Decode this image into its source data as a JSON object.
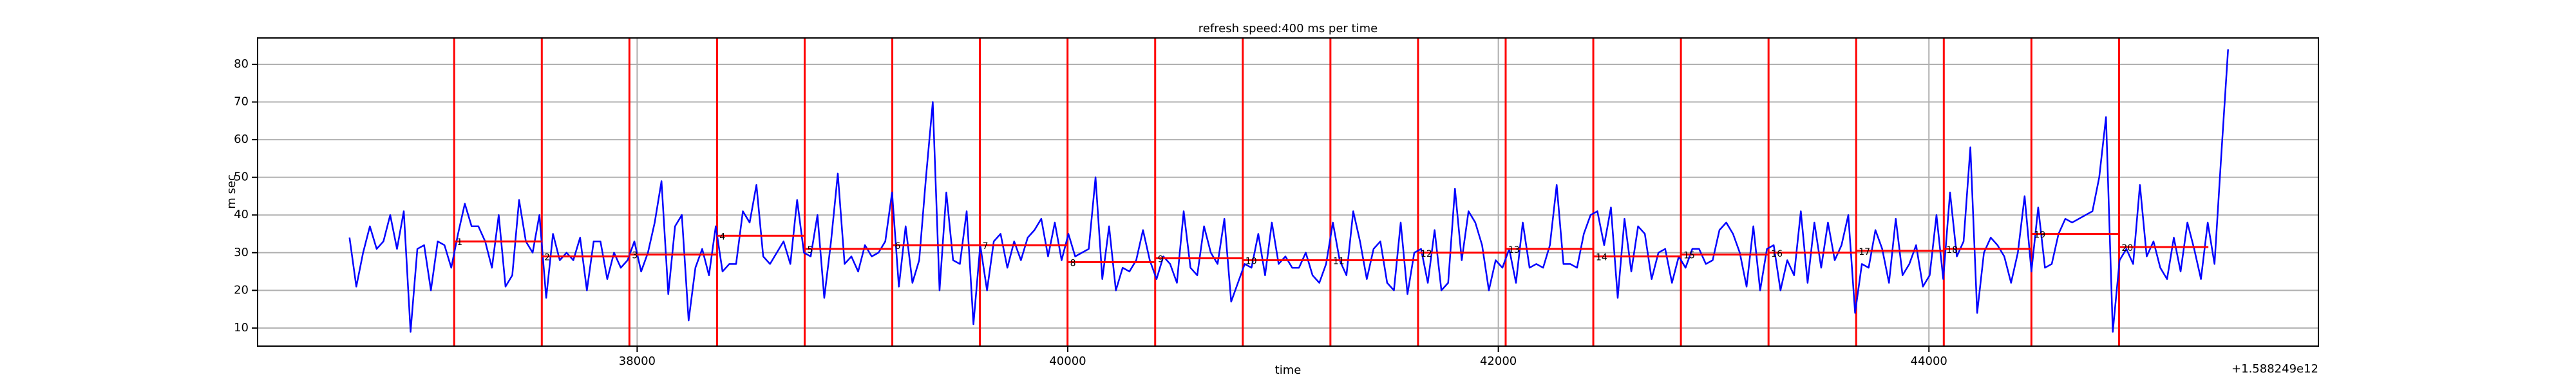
{
  "chart_data": {
    "type": "line",
    "title": "refresh speed:400 ms per time",
    "xlabel": "time",
    "ylabel": "m sec",
    "x_offset_label": "+1.588249e12",
    "xlim": [
      36237,
      45809
    ],
    "ylim": [
      5.2,
      87
    ],
    "xticks": [
      38000,
      40000,
      42000,
      44000
    ],
    "yticks": [
      10,
      20,
      30,
      40,
      50,
      60,
      70,
      80
    ],
    "grid": true,
    "series": [
      {
        "color": "#0000ff",
        "x": [
          36664,
          36695.5,
          36727,
          36758.5,
          36790,
          36821.5,
          36853,
          36884.5,
          36916,
          36947.5,
          36979,
          37010.5,
          37042,
          37073.5,
          37105,
          37136.5,
          37168,
          37199.5,
          37231,
          37262.5,
          37294,
          37325.5,
          37357,
          37388.5,
          37420,
          37451.5,
          37483,
          37514.5,
          37546,
          37577.5,
          37609,
          37640.5,
          37672,
          37703.5,
          37735,
          37766.5,
          37798,
          37829.5,
          37861,
          37892.5,
          37924,
          37955.5,
          37987,
          38018.5,
          38050,
          38081.5,
          38113,
          38144.5,
          38176,
          38207.5,
          38239,
          38270.5,
          38302,
          38333.5,
          38365,
          38396.5,
          38428,
          38459.5,
          38491,
          38522.5,
          38554,
          38585.5,
          38617,
          38648.5,
          38680,
          38711.5,
          38743,
          38774.5,
          38806,
          38837.5,
          38869,
          38900.5,
          38932,
          38963.5,
          38995,
          39026.5,
          39058,
          39089.5,
          39121,
          39152.5,
          39184,
          39215.5,
          39247,
          39278.5,
          39310,
          39341.5,
          39373,
          39404.5,
          39436,
          39467.5,
          39499,
          39530.5,
          39562,
          39593.5,
          39625,
          39656.5,
          39688,
          39719.5,
          39751,
          39782.5,
          39814,
          39845.5,
          39877,
          39908.5,
          39940,
          39971.5,
          40003,
          40034.5,
          40066,
          40097.5,
          40129,
          40160.5,
          40192,
          40223.5,
          40255,
          40286.5,
          40318,
          40349.5,
          40381,
          40412.5,
          40444,
          40475.5,
          40507,
          40538.5,
          40570,
          40601.5,
          40633,
          40664.5,
          40696,
          40727.5,
          40759,
          40790.5,
          40822,
          40853.5,
          40885,
          40916.5,
          40948,
          40979.5,
          41011,
          41042.5,
          41074,
          41105.5,
          41137,
          41168.5,
          41200,
          41231.5,
          41263,
          41294.5,
          41326,
          41357.5,
          41389,
          41420.5,
          41452,
          41483.5,
          41515,
          41546.5,
          41578,
          41609.5,
          41641,
          41672.5,
          41704,
          41735.5,
          41767,
          41798.5,
          41830,
          41861.5,
          41893,
          41924.5,
          41956,
          41987.5,
          42019,
          42050.5,
          42082,
          42113.5,
          42145,
          42176.5,
          42208,
          42239.5,
          42271,
          42302.5,
          42334,
          42365.5,
          42397,
          42428.5,
          42460,
          42491.5,
          42523,
          42554.5,
          42586,
          42617.5,
          42649,
          42680.5,
          42712,
          42743.5,
          42775,
          42806.5,
          42838,
          42869.5,
          42901,
          42932.5,
          42964,
          42995.5,
          43027,
          43058.5,
          43090,
          43121.5,
          43153,
          43184.5,
          43216,
          43247.5,
          43279,
          43310.5,
          43342,
          43373.5,
          43405,
          43436.5,
          43468,
          43499.5,
          43531,
          43562.5,
          43594,
          43625.5,
          43657,
          43688.5,
          43720,
          43751.5,
          43783,
          43814.5,
          43846,
          43877.5,
          43909,
          43940.5,
          43972,
          44003.5,
          44035,
          44066.5,
          44098,
          44129.5,
          44161,
          44192.5,
          44224,
          44255.5,
          44287,
          44318.5,
          44350,
          44381.5,
          44413,
          44444.5,
          44476,
          44507.5,
          44539,
          44570.5,
          44602,
          44633.5,
          44665,
          44696.5,
          44728,
          44759.5,
          44791,
          44822.5,
          44854,
          44885.5,
          44917,
          44948.5,
          44980,
          45011.5,
          45043,
          45074.5,
          45106,
          45137.5,
          45169,
          45200.5,
          45232,
          45263.5,
          45295,
          45326.5,
          45358,
          45389.5
        ],
        "values": [
          34,
          21,
          30,
          37,
          31,
          33,
          40,
          31,
          41,
          9,
          31,
          32,
          20,
          33,
          32,
          26,
          35,
          43,
          37,
          37,
          33,
          26,
          40,
          21,
          24,
          44,
          33,
          30,
          40,
          18,
          35,
          28,
          30,
          28,
          34,
          20,
          33,
          33,
          23,
          30,
          26,
          28,
          33,
          25,
          30,
          38,
          49,
          19,
          37,
          40,
          12,
          26,
          31,
          24,
          37,
          25,
          27,
          27,
          41,
          38,
          48,
          29,
          27,
          30,
          33,
          27,
          44,
          30,
          29,
          40,
          18,
          33,
          51,
          27,
          29,
          25,
          32,
          29,
          30,
          33,
          46,
          21,
          37,
          22,
          28,
          50,
          70,
          20,
          46,
          28,
          27,
          41,
          11,
          32,
          20,
          33,
          35,
          26,
          33,
          28,
          34,
          36,
          39,
          29,
          38,
          28,
          35,
          29,
          30,
          31,
          50,
          23,
          37,
          20,
          26,
          25,
          28,
          36,
          28,
          23,
          29,
          27,
          22,
          41,
          26,
          24,
          37,
          30,
          27,
          39,
          17,
          22,
          27,
          26,
          35,
          24,
          38,
          27,
          29,
          26,
          26,
          30,
          24,
          22,
          27,
          38,
          28,
          24,
          41,
          33,
          23,
          31,
          33,
          22,
          20,
          38,
          19,
          30,
          31,
          22,
          36,
          20,
          22,
          47,
          28,
          41,
          38,
          32,
          20,
          28,
          26,
          31,
          22,
          38,
          26,
          27,
          26,
          32,
          48,
          27,
          27,
          26,
          35,
          40,
          41,
          32,
          42,
          18,
          39,
          25,
          37,
          35,
          23,
          30,
          31,
          22,
          29,
          26,
          31,
          31,
          27,
          28,
          36,
          38,
          35,
          30,
          21,
          37,
          20,
          31,
          32,
          20,
          28,
          24,
          41,
          22,
          38,
          26,
          38,
          28,
          32,
          40,
          14,
          27,
          26,
          36,
          31,
          22,
          39,
          24,
          27,
          32,
          21,
          24,
          40,
          23,
          46,
          29,
          33,
          58,
          14,
          30,
          34,
          32,
          29,
          22,
          30,
          45,
          25,
          42,
          26,
          27,
          35,
          39,
          38,
          39,
          40,
          41,
          50,
          66,
          9,
          28,
          31,
          27,
          48,
          29,
          33,
          26,
          23,
          34,
          25,
          38,
          31,
          23,
          38,
          27,
          56,
          84
        ]
      }
    ],
    "vline_color": "#ff0000",
    "vlines": [
      37150,
      37557,
      37964,
      38371,
      38778,
      39185,
      39592,
      39999,
      40406,
      40813,
      41220,
      41627,
      42034,
      42441,
      42848,
      43255,
      43662,
      44069,
      44476,
      44883
    ],
    "segments": [
      {
        "x0": 37150,
        "x1": 37557,
        "value": 33,
        "label": "1"
      },
      {
        "x0": 37557,
        "x1": 37964,
        "value": 29,
        "label": "2"
      },
      {
        "x0": 37964,
        "x1": 38371,
        "value": 29.5,
        "label": "3"
      },
      {
        "x0": 38371,
        "x1": 38778,
        "value": 34.5,
        "label": "4"
      },
      {
        "x0": 38778,
        "x1": 39185,
        "value": 31,
        "label": "5"
      },
      {
        "x0": 39185,
        "x1": 39592,
        "value": 32,
        "label": "6"
      },
      {
        "x0": 39592,
        "x1": 39999,
        "value": 32,
        "label": "7"
      },
      {
        "x0": 39999,
        "x1": 40406,
        "value": 27.5,
        "label": "8"
      },
      {
        "x0": 40406,
        "x1": 40813,
        "value": 28.5,
        "label": "9"
      },
      {
        "x0": 40813,
        "x1": 41220,
        "value": 28,
        "label": "10"
      },
      {
        "x0": 41220,
        "x1": 41627,
        "value": 28,
        "label": "11"
      },
      {
        "x0": 41627,
        "x1": 42034,
        "value": 30,
        "label": "12"
      },
      {
        "x0": 42034,
        "x1": 42441,
        "value": 31,
        "label": "13"
      },
      {
        "x0": 42441,
        "x1": 42848,
        "value": 29,
        "label": "14"
      },
      {
        "x0": 42848,
        "x1": 43255,
        "value": 29.5,
        "label": "15"
      },
      {
        "x0": 43255,
        "x1": 43662,
        "value": 30,
        "label": "16"
      },
      {
        "x0": 43662,
        "x1": 44069,
        "value": 30.5,
        "label": "17"
      },
      {
        "x0": 44069,
        "x1": 44476,
        "value": 31,
        "label": "18"
      },
      {
        "x0": 44476,
        "x1": 44883,
        "value": 35,
        "label": "19"
      },
      {
        "x0": 44883,
        "x1": 45298,
        "value": 31.5,
        "label": "20"
      }
    ]
  }
}
